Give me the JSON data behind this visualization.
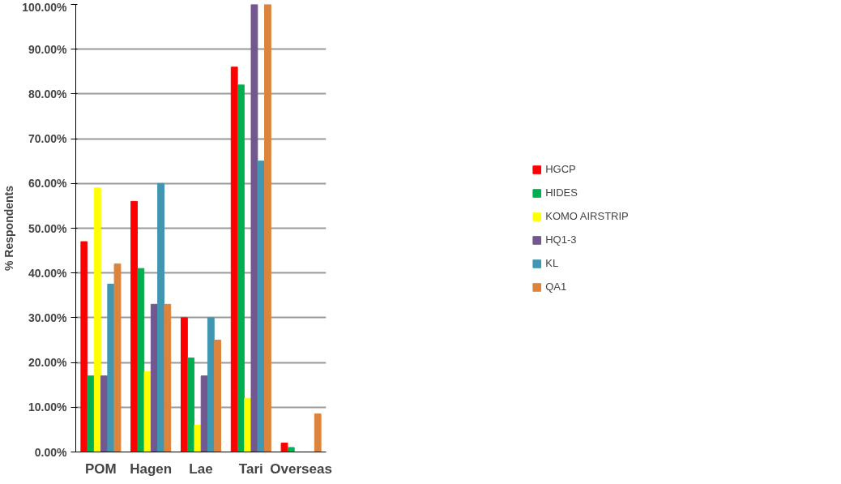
{
  "chart_data": {
    "type": "bar",
    "ylabel": "% Respondents",
    "categories": [
      "POM",
      "Hagen",
      "Lae",
      "Tari",
      "Overseas"
    ],
    "series": [
      {
        "name": "HGCP",
        "color": "#ff0000",
        "values": [
          47,
          56,
          30,
          86,
          2
        ]
      },
      {
        "name": "HIDES",
        "color": "#00b050",
        "values": [
          17,
          41,
          21,
          82,
          1
        ]
      },
      {
        "name": "KOMO AIRSTRIP",
        "color": "#ffff00",
        "values": [
          59,
          18,
          6,
          12,
          0
        ]
      },
      {
        "name": "HQ1-3",
        "color": "#73578f",
        "values": [
          17,
          33,
          17,
          100,
          0
        ]
      },
      {
        "name": "KL",
        "color": "#4196b1",
        "values": [
          37.5,
          60,
          30,
          65,
          0
        ]
      },
      {
        "name": "QA1",
        "color": "#dd843c",
        "values": [
          42,
          33,
          25,
          100,
          8.5
        ]
      }
    ],
    "ylim": [
      0,
      100
    ],
    "yticks": [
      {
        "value": 0,
        "label": "0.00%"
      },
      {
        "value": 10,
        "label": "10.00%"
      },
      {
        "value": 20,
        "label": "20.00%"
      },
      {
        "value": 30,
        "label": "30.00%"
      },
      {
        "value": 40,
        "label": "40.00%"
      },
      {
        "value": 50,
        "label": "50.00%"
      },
      {
        "value": 60,
        "label": "60.00%"
      },
      {
        "value": 70,
        "label": "70.00%"
      },
      {
        "value": 80,
        "label": "80.00%"
      },
      {
        "value": 90,
        "label": "90.00%"
      },
      {
        "value": 100,
        "label": "100.00%"
      }
    ],
    "grid": "y",
    "legend": "right"
  }
}
